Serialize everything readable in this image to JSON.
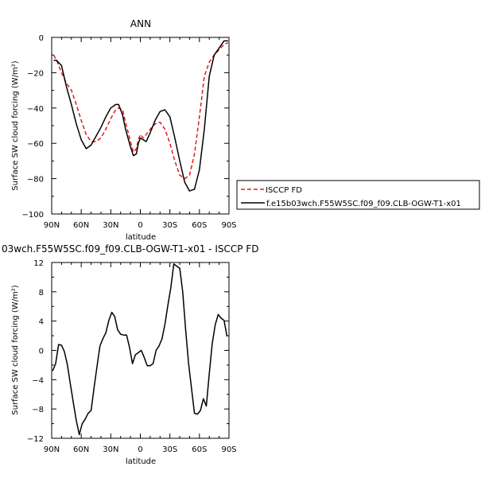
{
  "chart_data": [
    {
      "type": "line",
      "title": "ANN",
      "xlabel": "latitude",
      "ylabel": "Surface SW cloud forcing (W/m²)",
      "xlim": [
        90,
        -90
      ],
      "ylim": [
        -100,
        0
      ],
      "x_ticks": [
        {
          "value": 90,
          "label": "90N"
        },
        {
          "value": 60,
          "label": "60N"
        },
        {
          "value": 30,
          "label": "30N"
        },
        {
          "value": 0,
          "label": "0"
        },
        {
          "value": -30,
          "label": "30S"
        },
        {
          "value": -60,
          "label": "60S"
        },
        {
          "value": -90,
          "label": "90S"
        }
      ],
      "y_ticks": [
        {
          "value": 0,
          "label": "0"
        },
        {
          "value": -20,
          "label": "−20"
        },
        {
          "value": -40,
          "label": "−40"
        },
        {
          "value": -60,
          "label": "−60"
        },
        {
          "value": -80,
          "label": "−80"
        },
        {
          "value": -100,
          "label": "−100"
        }
      ],
      "series": [
        {
          "name": "ISCCP FD",
          "color": "#e31a1c",
          "dash": true,
          "x": [
            88,
            85,
            80,
            75,
            70,
            65,
            60,
            55,
            50,
            45,
            40,
            35,
            30,
            25,
            22,
            18,
            15,
            10,
            7,
            4,
            2,
            0,
            -3,
            -6,
            -10,
            -15,
            -20,
            -25,
            -30,
            -35,
            -40,
            -45,
            -50,
            -55,
            -60,
            -65,
            -70,
            -75,
            -80,
            -85,
            -89
          ],
          "y": [
            -10,
            -13,
            -20,
            -26,
            -30,
            -38,
            -47,
            -55,
            -59,
            -59,
            -57,
            -52,
            -46,
            -41,
            -40,
            -41,
            -48,
            -59,
            -65,
            -63,
            -58,
            -55,
            -57,
            -55,
            -52,
            -49,
            -48,
            -52,
            -60,
            -70,
            -78,
            -80,
            -78,
            -66,
            -45,
            -22,
            -14,
            -10,
            -7,
            -4,
            -3
          ]
        },
        {
          "name": "f.e15b03wch.F55W5SC.f09_f09.CLB-OGW-T1-x01",
          "color": "#000000",
          "dash": false,
          "x": [
            88,
            85,
            80,
            75,
            70,
            65,
            60,
            55,
            50,
            45,
            40,
            35,
            30,
            25,
            22,
            18,
            15,
            10,
            7,
            4,
            2,
            0,
            -3,
            -6,
            -10,
            -15,
            -20,
            -25,
            -30,
            -35,
            -40,
            -45,
            -50,
            -55,
            -60,
            -65,
            -70,
            -75,
            -80,
            -85,
            -89
          ],
          "y": [
            -13,
            -13,
            -16,
            -28,
            -38,
            -49,
            -58,
            -63,
            -61,
            -56,
            -51,
            -45,
            -40,
            -38,
            -38,
            -44,
            -52,
            -62,
            -67,
            -66,
            -60,
            -57,
            -58,
            -59,
            -54,
            -47,
            -42,
            -41,
            -45,
            -57,
            -70,
            -82,
            -87,
            -86,
            -75,
            -52,
            -22,
            -10,
            -6,
            -2,
            -2
          ]
        }
      ],
      "legend": {
        "placement": "right"
      }
    },
    {
      "type": "line",
      "title": "03wch.F55W5SC.f09_f09.CLB-OGW-T1-x01 - ISCCP FD",
      "xlabel": "latitude",
      "ylabel": "Surface SW cloud forcing (W/m²)",
      "xlim": [
        90,
        -90
      ],
      "ylim": [
        -12,
        12
      ],
      "x_ticks": [
        {
          "value": 90,
          "label": "90N"
        },
        {
          "value": 60,
          "label": "60N"
        },
        {
          "value": 30,
          "label": "30N"
        },
        {
          "value": 0,
          "label": "0"
        },
        {
          "value": -30,
          "label": "30S"
        },
        {
          "value": -60,
          "label": "60S"
        },
        {
          "value": -90,
          "label": "90S"
        }
      ],
      "y_ticks": [
        {
          "value": 12,
          "label": "12"
        },
        {
          "value": 8,
          "label": "8"
        },
        {
          "value": 4,
          "label": "4"
        },
        {
          "value": 0,
          "label": "0"
        },
        {
          "value": -4,
          "label": "−4"
        },
        {
          "value": -8,
          "label": "−8"
        },
        {
          "value": -12,
          "label": "−12"
        }
      ],
      "series": [
        {
          "color": "#000000",
          "dash": false,
          "x": [
            89,
            86,
            83,
            80,
            77,
            74,
            71,
            68,
            65,
            62,
            59,
            56,
            53,
            50,
            47,
            44,
            41,
            38,
            35,
            32,
            29,
            26,
            23,
            20,
            17,
            14,
            11,
            8,
            5,
            2,
            -1,
            -4,
            -7,
            -10,
            -13,
            -16,
            -19,
            -22,
            -25,
            -28,
            -31,
            -34,
            -37,
            -40,
            -43,
            -46,
            -49,
            -52,
            -55,
            -58,
            -61,
            -64,
            -67,
            -70,
            -73,
            -76,
            -79,
            -82,
            -85,
            -88
          ],
          "y": [
            -2.8,
            -1.8,
            0.8,
            0.7,
            -0.2,
            -2,
            -4.6,
            -7.2,
            -9.6,
            -11.5,
            -10,
            -9.4,
            -8.6,
            -8.2,
            -5.1,
            -2.2,
            0.6,
            1.6,
            2.4,
            4.1,
            5.2,
            4.6,
            2.8,
            2.2,
            2.1,
            2.1,
            0.4,
            -1.8,
            -0.6,
            -0.3,
            0,
            -1,
            -2.1,
            -2.1,
            -1.8,
            0,
            0.6,
            1.6,
            3.6,
            6.2,
            8.6,
            11.8,
            11.5,
            11.2,
            8,
            2.8,
            -1.8,
            -5.2,
            -8.6,
            -8.7,
            -8.2,
            -6.6,
            -7.6,
            -3.2,
            0.9,
            3.5,
            4.9,
            4.4,
            4.1,
            1.9
          ]
        }
      ]
    }
  ]
}
